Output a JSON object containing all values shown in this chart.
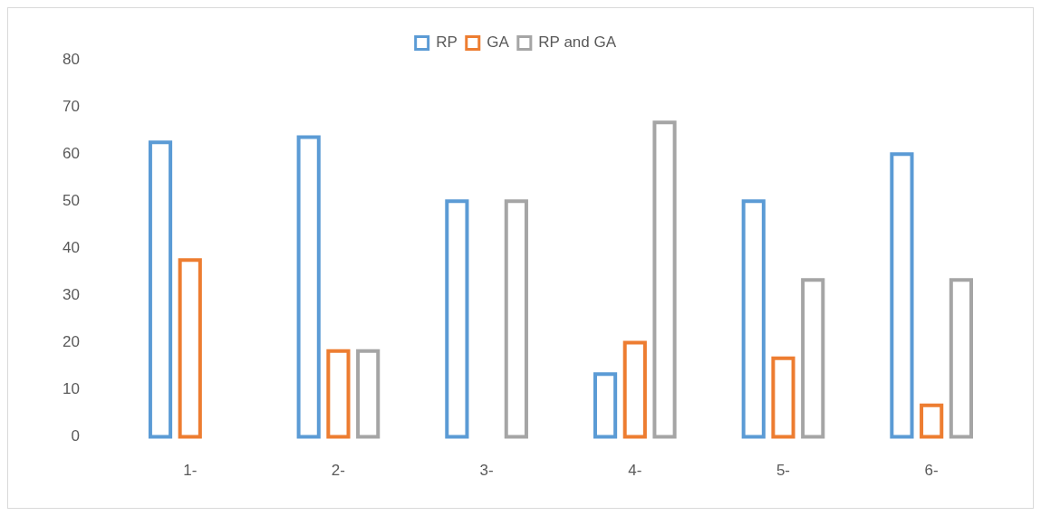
{
  "chart_data": {
    "type": "bar",
    "categories": [
      "1-",
      "2-",
      "3-",
      "4-",
      "5-",
      "6-"
    ],
    "series": [
      {
        "name": "RP",
        "color": "#5b9bd5",
        "values": [
          62.5,
          63.6,
          50,
          13.3,
          50,
          60
        ]
      },
      {
        "name": "GA",
        "color": "#ed7d31",
        "values": [
          37.5,
          18.2,
          null,
          20,
          16.7,
          6.7
        ]
      },
      {
        "name": "RP and GA",
        "color": "#a5a5a5",
        "values": [
          null,
          18.2,
          50,
          66.7,
          33.3,
          33.3
        ]
      }
    ],
    "ylim": [
      0,
      80
    ],
    "yticks": [
      0,
      10,
      20,
      30,
      40,
      50,
      60,
      70,
      80
    ],
    "grid": false,
    "legend": "top"
  }
}
